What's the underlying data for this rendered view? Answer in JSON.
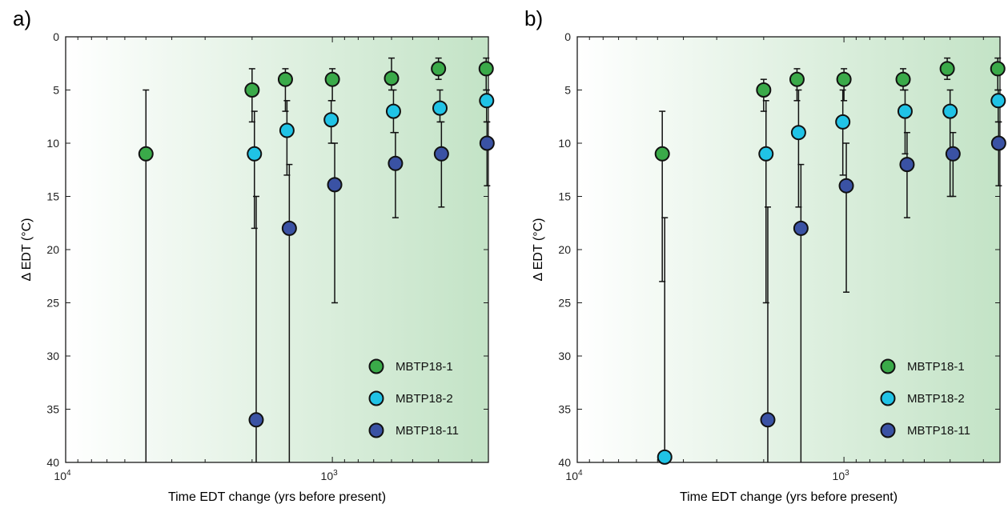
{
  "figure": {
    "colors": {
      "MBTP18-1": "#3aaa49",
      "MBTP18-2": "#20c3e6",
      "MBTP18-11": "#3a52a4",
      "bg_left": "#ffffff",
      "bg_right": "#c3e3c6",
      "marker_edge": "#111111"
    }
  },
  "chart_data": [
    {
      "panel": "a)",
      "type": "scatter",
      "xscale": "log",
      "xreversed": true,
      "xlim": [
        10000,
        260
      ],
      "ylim": [
        0,
        40
      ],
      "yreversed": true,
      "xlabel": "Time EDT change (yrs before present)",
      "ylabel": "Δ EDT (°C)",
      "xtick_labels": [
        {
          "value": 10000,
          "base": "10",
          "exp": "4"
        },
        {
          "value": 1000,
          "base": "10",
          "exp": "3"
        }
      ],
      "yticks": [
        0,
        5,
        10,
        15,
        20,
        25,
        30,
        35,
        40
      ],
      "grid": false,
      "legend": "bottom-right",
      "series": [
        {
          "name": "MBTP18-1",
          "points": [
            {
              "x": 5000,
              "y": 11,
              "err": [
                5,
                40
              ]
            },
            {
              "x": 2000,
              "y": 5,
              "err": [
                3,
                8
              ]
            },
            {
              "x": 1500,
              "y": 4,
              "err": [
                3,
                7
              ]
            },
            {
              "x": 1000,
              "y": 4,
              "err": [
                3,
                6
              ]
            },
            {
              "x": 600,
              "y": 3.9,
              "err": [
                2,
                5
              ]
            },
            {
              "x": 400,
              "y": 3,
              "err": [
                2,
                4
              ]
            },
            {
              "x": 265,
              "y": 3,
              "err": [
                2,
                5
              ]
            }
          ]
        },
        {
          "name": "MBTP18-2",
          "points": [
            {
              "x": 1960,
              "y": 11,
              "err": [
                7,
                18
              ]
            },
            {
              "x": 1480,
              "y": 8.8,
              "err": [
                6,
                13
              ]
            },
            {
              "x": 1010,
              "y": 7.8,
              "err": [
                6,
                10
              ]
            },
            {
              "x": 590,
              "y": 7,
              "err": [
                5,
                9
              ]
            },
            {
              "x": 395,
              "y": 6.7,
              "err": [
                5,
                8
              ]
            },
            {
              "x": 264,
              "y": 6,
              "err": [
                5,
                8
              ]
            }
          ]
        },
        {
          "name": "MBTP18-11",
          "points": [
            {
              "x": 1930,
              "y": 36,
              "err": [
                15,
                40
              ]
            },
            {
              "x": 1450,
              "y": 18,
              "err": [
                12,
                40
              ]
            },
            {
              "x": 980,
              "y": 13.9,
              "err": [
                10,
                25
              ]
            },
            {
              "x": 580,
              "y": 11.9,
              "err": [
                9,
                17
              ]
            },
            {
              "x": 390,
              "y": 11,
              "err": [
                8,
                16
              ]
            },
            {
              "x": 263,
              "y": 10,
              "err": [
                8,
                14
              ]
            }
          ]
        }
      ]
    },
    {
      "panel": "b)",
      "type": "scatter",
      "xscale": "log",
      "xreversed": true,
      "xlim": [
        10000,
        260
      ],
      "ylim": [
        0,
        40
      ],
      "yreversed": true,
      "xlabel": "Time EDT change (yrs before present)",
      "ylabel": "Δ EDT (°C)",
      "xtick_labels": [
        {
          "value": 10000,
          "base": "10",
          "exp": "4"
        },
        {
          "value": 1000,
          "base": "10",
          "exp": "3"
        }
      ],
      "yticks": [
        0,
        5,
        10,
        15,
        20,
        25,
        30,
        35,
        40
      ],
      "grid": false,
      "legend": "bottom-right",
      "series": [
        {
          "name": "MBTP18-1",
          "points": [
            {
              "x": 4800,
              "y": 11,
              "err": [
                7,
                23
              ]
            },
            {
              "x": 2000,
              "y": 5,
              "err": [
                4,
                7
              ]
            },
            {
              "x": 1500,
              "y": 4,
              "err": [
                3,
                6
              ]
            },
            {
              "x": 1000,
              "y": 4,
              "err": [
                3,
                6
              ]
            },
            {
              "x": 600,
              "y": 4,
              "err": [
                3,
                5
              ]
            },
            {
              "x": 410,
              "y": 3,
              "err": [
                2,
                4
              ]
            },
            {
              "x": 265,
              "y": 3,
              "err": [
                2,
                5
              ]
            }
          ]
        },
        {
          "name": "MBTP18-2",
          "points": [
            {
              "x": 4700,
              "y": 39.5,
              "err": [
                17,
                40
              ]
            },
            {
              "x": 1960,
              "y": 11,
              "err": [
                6,
                25
              ]
            },
            {
              "x": 1480,
              "y": 9,
              "err": [
                5,
                16
              ]
            },
            {
              "x": 1010,
              "y": 8,
              "err": [
                5,
                13
              ]
            },
            {
              "x": 590,
              "y": 7,
              "err": [
                5,
                11
              ]
            },
            {
              "x": 400,
              "y": 7,
              "err": [
                5,
                15
              ]
            },
            {
              "x": 264,
              "y": 6,
              "err": [
                5,
                8
              ]
            }
          ]
        },
        {
          "name": "MBTP18-11",
          "points": [
            {
              "x": 1930,
              "y": 36,
              "err": [
                16,
                40
              ]
            },
            {
              "x": 1450,
              "y": 18,
              "err": [
                12,
                40
              ]
            },
            {
              "x": 980,
              "y": 14,
              "err": [
                10,
                24
              ]
            },
            {
              "x": 580,
              "y": 12,
              "err": [
                9,
                17
              ]
            },
            {
              "x": 390,
              "y": 11,
              "err": [
                9,
                15
              ]
            },
            {
              "x": 263,
              "y": 10,
              "err": [
                8,
                14
              ]
            }
          ]
        }
      ]
    }
  ]
}
